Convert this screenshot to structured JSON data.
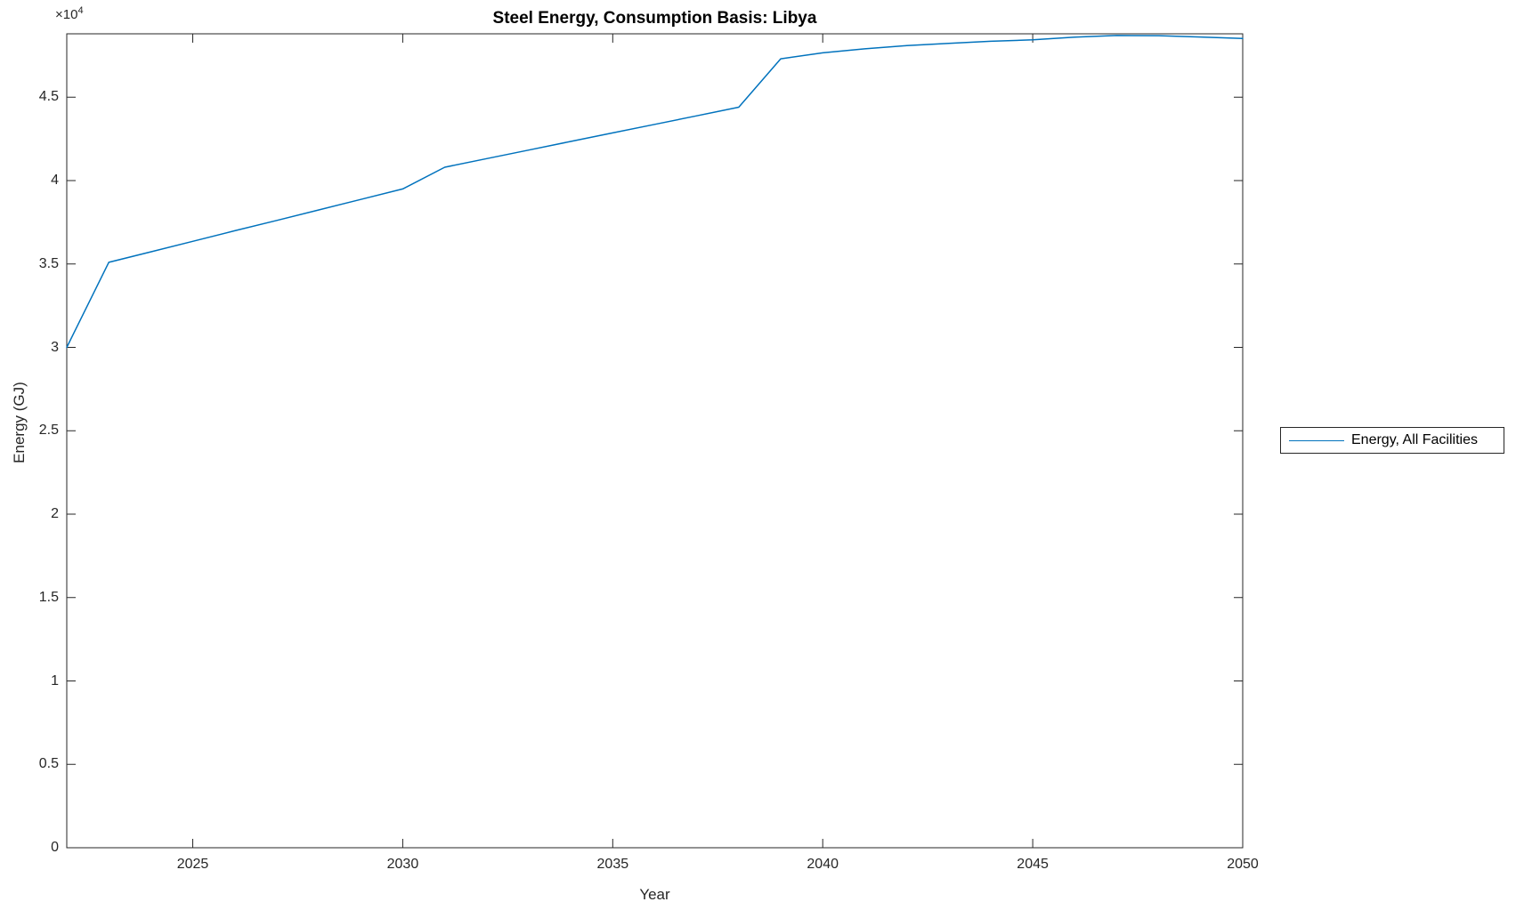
{
  "figure": {
    "title": "Steel Energy, Consumption Basis: Libya",
    "x_axis_label": "Year",
    "y_axis_label": "Energy (GJ)",
    "y_multiplier_base": "×10",
    "y_multiplier_exponent": "4",
    "legend": {
      "entries": [
        {
          "label": "Energy, All Facilities",
          "color": "#0072BD"
        }
      ]
    },
    "colors": {
      "line": "#0072BD",
      "axis": "#262626",
      "title_text": "#000000",
      "background": "#ffffff"
    }
  },
  "chart_data": {
    "type": "line",
    "title": "Steel Energy, Consumption Basis: Libya",
    "xlabel": "Year",
    "ylabel": "Energy (GJ)",
    "xlim": [
      2022,
      2050
    ],
    "ylim": [
      0,
      48800
    ],
    "x_ticks": [
      2025,
      2030,
      2035,
      2040,
      2045,
      2050
    ],
    "y_ticks": [
      0,
      5000,
      10000,
      15000,
      20000,
      25000,
      30000,
      35000,
      40000,
      45000
    ],
    "y_tick_labels": [
      "0",
      "0.5",
      "1",
      "1.5",
      "2",
      "2.5",
      "3",
      "3.5",
      "4",
      "4.5"
    ],
    "y_multiplier": 10000,
    "grid": false,
    "legend_position": "outside-right",
    "series": [
      {
        "name": "Energy, All Facilities",
        "color": "#0072BD",
        "x": [
          2022,
          2023,
          2024,
          2025,
          2026,
          2027,
          2028,
          2029,
          2030,
          2031,
          2032,
          2033,
          2034,
          2035,
          2036,
          2037,
          2038,
          2039,
          2040,
          2041,
          2042,
          2043,
          2044,
          2045,
          2046,
          2047,
          2048,
          2049,
          2050
        ],
        "y": [
          30000,
          35100,
          35730,
          36360,
          36990,
          37610,
          38240,
          38870,
          39500,
          40800,
          41315,
          41830,
          42345,
          42860,
          43370,
          43885,
          44400,
          47300,
          47660,
          47900,
          48090,
          48230,
          48350,
          48440,
          48600,
          48700,
          48690,
          48610,
          48520
        ]
      }
    ]
  }
}
